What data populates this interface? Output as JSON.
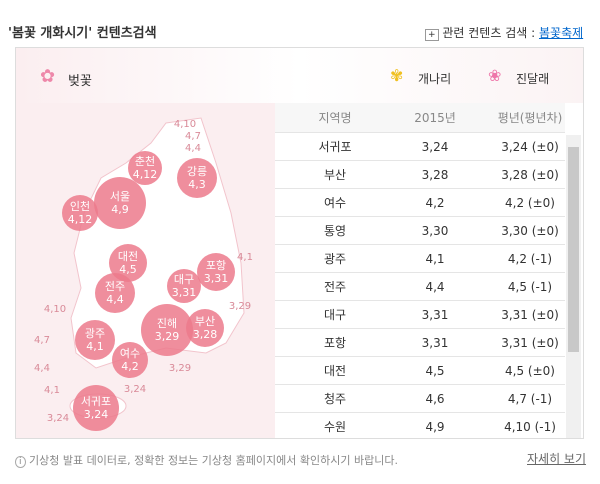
{
  "header": {
    "title": "'봄꽃 개화시기' 컨텐츠검색",
    "related_label": "관련 컨텐츠 검색 :",
    "related_link": "봄꽃축제"
  },
  "tabs": [
    "벚꽃",
    "개나리",
    "진달래"
  ],
  "map": {
    "bubbles": [
      {
        "city": "춘천",
        "date": "4,12"
      },
      {
        "city": "강릉",
        "date": "4,3"
      },
      {
        "city": "서울",
        "date": "4,9"
      },
      {
        "city": "인천",
        "date": "4,12"
      },
      {
        "city": "대전",
        "date": "4,5"
      },
      {
        "city": "포항",
        "date": "3,31"
      },
      {
        "city": "대구",
        "date": "3,31"
      },
      {
        "city": "전주",
        "date": "4,4"
      },
      {
        "city": "부산",
        "date": "3,28"
      },
      {
        "city": "진해",
        "date": "3,29"
      },
      {
        "city": "광주",
        "date": "4,1"
      },
      {
        "city": "여수",
        "date": "4,2"
      },
      {
        "city": "서귀포",
        "date": "3,24"
      }
    ],
    "contours": [
      "4,10",
      "4,7",
      "4,4",
      "4,1",
      "3,29",
      "4,10",
      "4,7",
      "4,4",
      "4,1",
      "3,24",
      "3,29",
      "3,24"
    ]
  },
  "table": {
    "headers": [
      "지역명",
      "2015년",
      "평년(평년차)"
    ],
    "rows": [
      [
        "서귀포",
        "3,24",
        "3,24 (±0)"
      ],
      [
        "부산",
        "3,28",
        "3,28 (±0)"
      ],
      [
        "여수",
        "4,2",
        "4,2 (±0)"
      ],
      [
        "통영",
        "3,30",
        "3,30 (±0)"
      ],
      [
        "광주",
        "4,1",
        "4,2 (-1)"
      ],
      [
        "전주",
        "4,4",
        "4,5 (-1)"
      ],
      [
        "대구",
        "3,31",
        "3,31 (±0)"
      ],
      [
        "포항",
        "3,31",
        "3,31 (±0)"
      ],
      [
        "대전",
        "4,5",
        "4,5 (±0)"
      ],
      [
        "청주",
        "4,6",
        "4,7 (-1)"
      ],
      [
        "수원",
        "4,9",
        "4,10 (-1)"
      ]
    ]
  },
  "footer": {
    "note": "기상청 발표 데이터로, 정확한 정보는 기상청 홈페이지에서 확인하시기 바랍니다.",
    "more": "자세히 보기"
  }
}
